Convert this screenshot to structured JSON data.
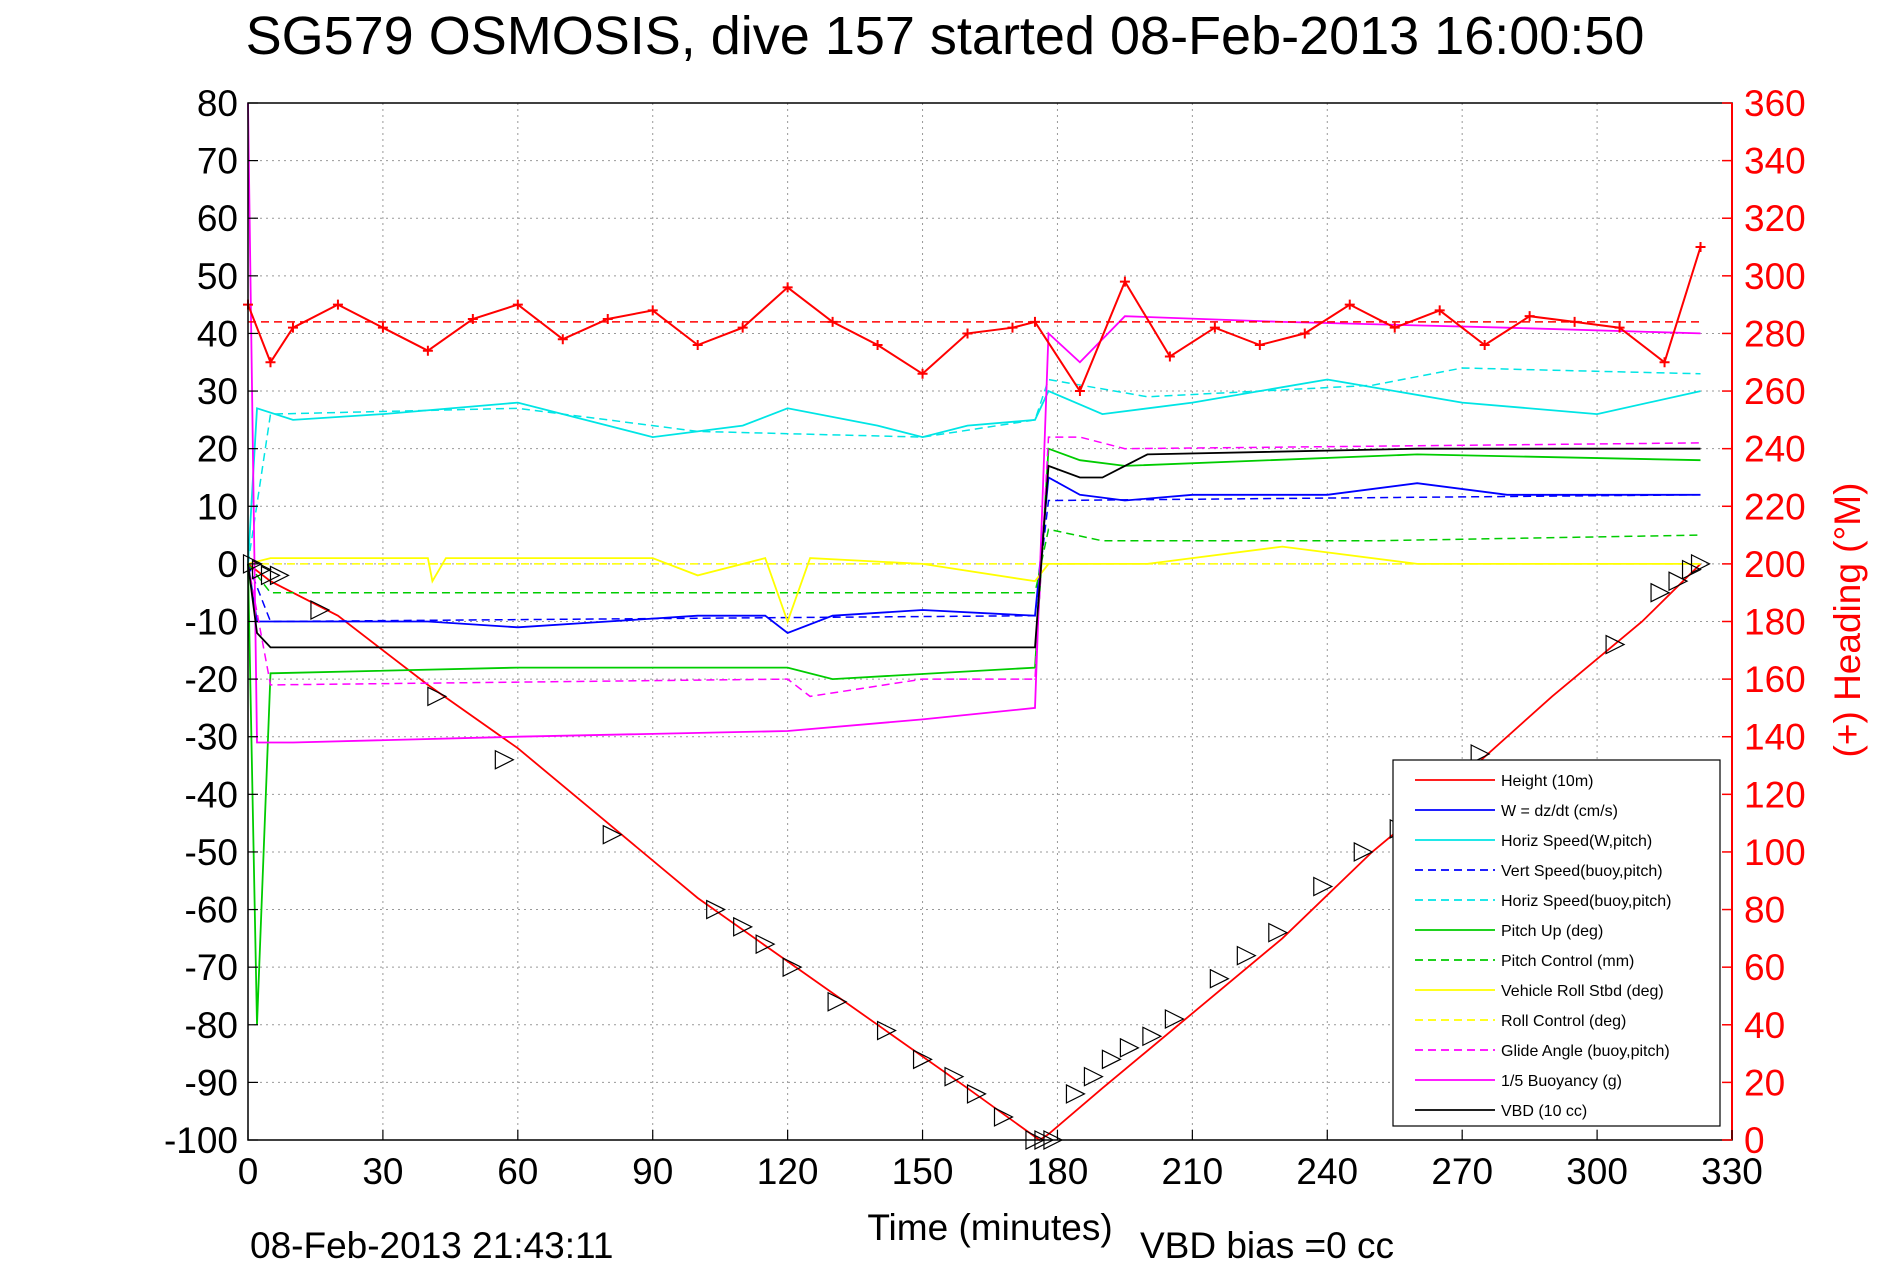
{
  "title": "SG579 OSMOSIS, dive 157 started 08-Feb-2013 16:00:50",
  "xlabel": "Time (minutes)",
  "right_ylabel": "(+) Heading (°M)",
  "footer_timestamp": "08-Feb-2013 21:43:11",
  "footer_vbd_bias": "VBD bias =0 cc",
  "chart_data": {
    "type": "line",
    "title": "SG579 OSMOSIS, dive 157 started 08-Feb-2013 16:00:50",
    "xlabel": "Time (minutes)",
    "ylabel": "",
    "y2label": "(+) Heading (°M)",
    "xlim": [
      0,
      330
    ],
    "ylim": [
      -100,
      80
    ],
    "y2lim": [
      0,
      360
    ],
    "x_ticks": [
      "0",
      "30",
      "60",
      "90",
      "120",
      "150",
      "180",
      "210",
      "240",
      "270",
      "300",
      "330"
    ],
    "y_ticks": [
      "80",
      "70",
      "60",
      "50",
      "40",
      "30",
      "20",
      "10",
      "0",
      "-10",
      "-20",
      "-30",
      "-40",
      "-50",
      "-60",
      "-70",
      "-80",
      "-90",
      "-100"
    ],
    "y2_ticks": [
      "360",
      "340",
      "320",
      "300",
      "280",
      "260",
      "240",
      "220",
      "200",
      "180",
      "160",
      "140",
      "120",
      "100",
      "80",
      "60",
      "40",
      "20",
      "0"
    ],
    "grid": true,
    "legend_position": "lower-right",
    "series": [
      {
        "name": "Height (10m)",
        "color": "#ff0000",
        "style": "solid",
        "axis": "left",
        "x": [
          0,
          5,
          20,
          40,
          60,
          80,
          100,
          120,
          140,
          160,
          176,
          178,
          190,
          210,
          230,
          250,
          270,
          290,
          310,
          323
        ],
        "y": [
          0,
          -3,
          -9,
          -21,
          -32,
          -45,
          -58,
          -69,
          -80,
          -91,
          -100,
          -99,
          -91,
          -78,
          -65,
          -50,
          -37,
          -23,
          -10,
          0
        ]
      },
      {
        "name": "W = dz/dt (cm/s)",
        "color": "#0000ff",
        "style": "solid",
        "axis": "left",
        "x": [
          0,
          2,
          5,
          20,
          40,
          60,
          80,
          100,
          115,
          120,
          130,
          150,
          175,
          178,
          185,
          195,
          210,
          240,
          260,
          280,
          300,
          323
        ],
        "y": [
          0,
          -10,
          -10,
          -10,
          -10,
          -11,
          -10,
          -9,
          -9,
          -12,
          -9,
          -8,
          -9,
          15,
          12,
          11,
          12,
          12,
          14,
          12,
          12,
          12
        ]
      },
      {
        "name": "Horiz Speed(W,pitch)",
        "color": "#00e5e5",
        "style": "solid",
        "axis": "left",
        "x": [
          0,
          2,
          10,
          30,
          60,
          90,
          110,
          120,
          140,
          150,
          160,
          175,
          178,
          190,
          210,
          240,
          270,
          300,
          323
        ],
        "y": [
          0,
          27,
          25,
          26,
          28,
          22,
          24,
          27,
          24,
          22,
          24,
          25,
          30,
          26,
          28,
          32,
          28,
          26,
          30
        ]
      },
      {
        "name": "Vert Speed(buoy,pitch)",
        "color": "#0000ff",
        "style": "dashed",
        "axis": "left",
        "x": [
          0,
          5,
          175,
          178,
          323
        ],
        "y": [
          0,
          -10,
          -9,
          11,
          12
        ]
      },
      {
        "name": "Horiz Speed(buoy,pitch)",
        "color": "#00e5e5",
        "style": "dashed",
        "axis": "left",
        "x": [
          0,
          5,
          60,
          100,
          150,
          175,
          178,
          200,
          250,
          270,
          323
        ],
        "y": [
          0,
          26,
          27,
          23,
          22,
          25,
          32,
          29,
          31,
          34,
          33
        ]
      },
      {
        "name": "Pitch Up (deg)",
        "color": "#00cc00",
        "style": "solid",
        "axis": "left",
        "x": [
          0,
          2,
          5,
          60,
          120,
          130,
          175,
          178,
          185,
          195,
          260,
          323
        ],
        "y": [
          0,
          -80,
          -19,
          -18,
          -18,
          -20,
          -18,
          20,
          18,
          17,
          19,
          18
        ]
      },
      {
        "name": "Pitch Control (mm)",
        "color": "#00cc00",
        "style": "dashed",
        "axis": "left",
        "x": [
          0,
          5,
          175,
          178,
          190,
          250,
          323
        ],
        "y": [
          0,
          -5,
          -5,
          6,
          4,
          4,
          5
        ]
      },
      {
        "name": "Vehicle Roll Stbd (deg)",
        "color": "#ffff00",
        "style": "solid",
        "axis": "left",
        "x": [
          0,
          5,
          40,
          41,
          44,
          60,
          90,
          100,
          115,
          120,
          125,
          150,
          175,
          178,
          200,
          230,
          260,
          290,
          323
        ],
        "y": [
          0,
          1,
          1,
          -3,
          1,
          1,
          1,
          -2,
          1,
          -10,
          1,
          0,
          -3,
          0,
          0,
          3,
          0,
          0,
          0
        ]
      },
      {
        "name": "Roll Control (deg)",
        "color": "#ffff00",
        "style": "dashed",
        "axis": "left",
        "x": [
          0,
          5,
          175,
          178,
          323
        ],
        "y": [
          0,
          0,
          0,
          0,
          0
        ]
      },
      {
        "name": "Glide Angle (buoy,pitch)",
        "color": "#ff00ff",
        "style": "dashed",
        "axis": "left",
        "x": [
          0,
          5,
          120,
          125,
          150,
          175,
          178,
          185,
          195,
          323
        ],
        "y": [
          0,
          -21,
          -20,
          -23,
          -20,
          -20,
          22,
          22,
          20,
          21
        ]
      },
      {
        "name": "1/5 Buoyancy (g)",
        "color": "#ff00ff",
        "style": "solid",
        "axis": "left",
        "x": [
          0,
          2,
          10,
          60,
          120,
          150,
          175,
          178,
          185,
          195,
          230,
          280,
          323
        ],
        "y": [
          80,
          -31,
          -31,
          -30,
          -29,
          -27,
          -25,
          40,
          35,
          43,
          42,
          41,
          40
        ]
      },
      {
        "name": "VBD (10 cc)",
        "color": "#000000",
        "style": "solid",
        "axis": "left",
        "x": [
          0,
          2,
          5,
          175,
          178,
          185,
          190,
          195,
          200,
          260,
          323
        ],
        "y": [
          0,
          -12,
          -14.5,
          -14.5,
          17,
          15,
          15,
          17,
          19,
          20,
          20
        ]
      },
      {
        "name": "",
        "color": "#ff0000",
        "style": "marker",
        "axis": "right",
        "x": [
          0,
          5,
          10,
          20,
          30,
          40,
          50,
          60,
          70,
          80,
          90,
          100,
          110,
          120,
          130,
          140,
          150,
          160,
          170,
          175,
          185,
          195,
          205,
          215,
          225,
          235,
          245,
          255,
          265,
          275,
          285,
          295,
          305,
          315,
          323
        ],
        "y": [
          290,
          270,
          282,
          290,
          282,
          274,
          285,
          290,
          278,
          285,
          288,
          276,
          282,
          296,
          284,
          276,
          266,
          280,
          282,
          284,
          260,
          298,
          272,
          282,
          276,
          280,
          290,
          282,
          288,
          276,
          286,
          284,
          282,
          270,
          310
        ]
      },
      {
        "name": "",
        "color": "#ff0000",
        "style": "dashed",
        "axis": "right",
        "x": [
          0,
          323
        ],
        "y": [
          284,
          284
        ]
      }
    ],
    "dive_markers": {
      "x": [
        1,
        3,
        5,
        7,
        16,
        42,
        57,
        81,
        104,
        110,
        115,
        121,
        131,
        142,
        150,
        157,
        162,
        168,
        175,
        177,
        179,
        184,
        188,
        192,
        196,
        201,
        206,
        216,
        222,
        229,
        239,
        248,
        256,
        274,
        304,
        314,
        318,
        321,
        323
      ],
      "y": [
        0,
        -1,
        -2,
        -2,
        -8,
        -23,
        -34,
        -47,
        -60,
        -63,
        -66,
        -70,
        -76,
        -81,
        -86,
        -89,
        -92,
        -96,
        -100,
        -100,
        -100,
        -92,
        -89,
        -86,
        -84,
        -82,
        -79,
        -72,
        -68,
        -64,
        -56,
        -50,
        -46,
        -33,
        -14,
        -5,
        -3,
        -1,
        0
      ]
    }
  }
}
